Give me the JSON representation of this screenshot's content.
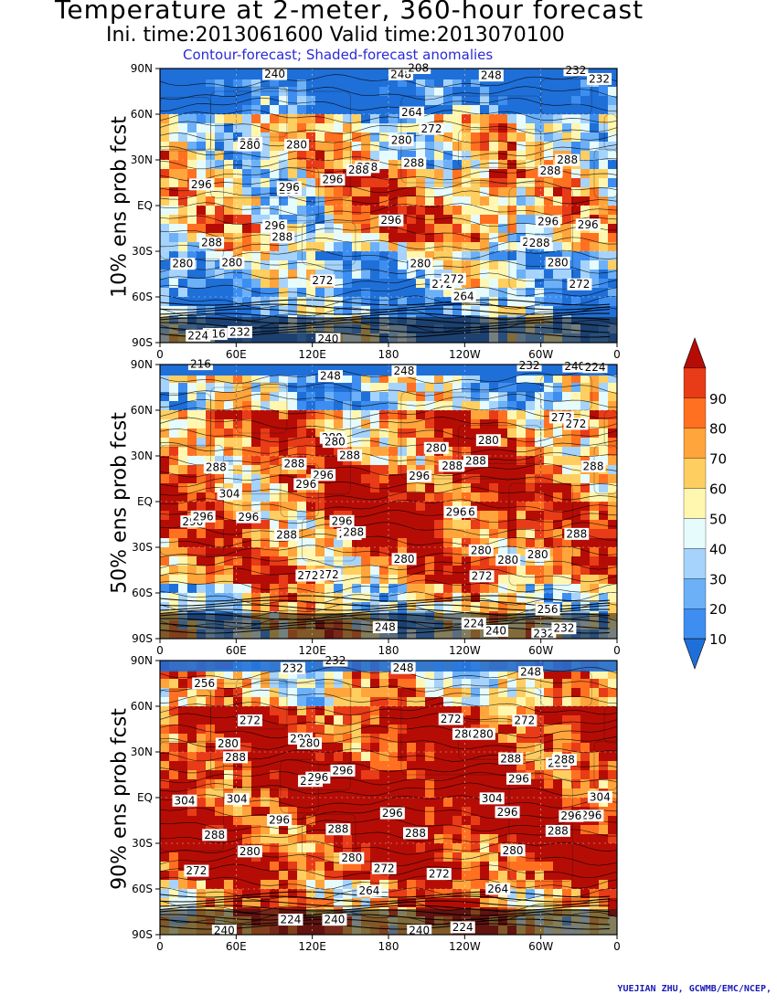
{
  "header": {
    "title": "Temperature at 2-meter, 360-hour forecast",
    "subtitle": "Ini. time:2013061600    Valid time:2013070100",
    "caption": "Contour-forecast; Shaded-forecast anomalies"
  },
  "panels": [
    {
      "label": "10% ens prob fcst",
      "contour_labels": [
        "272",
        "280",
        "272",
        "288",
        "272",
        "264",
        "280",
        "280",
        "280",
        "288",
        "296",
        "288",
        "288",
        "296",
        "296",
        "296",
        "288",
        "280",
        "288",
        "296",
        "296",
        "288",
        "296",
        "296",
        "280",
        "288",
        "288",
        "280",
        "280",
        "272",
        "272",
        "248",
        "264",
        "248",
        "240",
        "232",
        "216",
        "240",
        "232",
        "208",
        "224",
        "232"
      ]
    },
    {
      "label": "50% ens prob fcst",
      "contour_labels": [
        "272",
        "280",
        "272",
        "280",
        "280",
        "288",
        "272",
        "272",
        "288",
        "288",
        "288",
        "288",
        "296",
        "288",
        "296",
        "304",
        "280",
        "280",
        "296",
        "296",
        "296",
        "296",
        "288",
        "288",
        "296",
        "296",
        "296",
        "288",
        "288",
        "288",
        "280",
        "280",
        "280",
        "272",
        "256",
        "232",
        "248",
        "240",
        "224",
        "216",
        "232",
        "248",
        "240",
        "224",
        "232",
        "248"
      ]
    },
    {
      "label": "90% ens prob fcst",
      "contour_labels": [
        "272",
        "280",
        "288",
        "272",
        "272",
        "280",
        "288",
        "280",
        "288",
        "288",
        "296",
        "296",
        "280",
        "296",
        "280",
        "272",
        "304",
        "304",
        "296",
        "296",
        "304",
        "288",
        "296",
        "304",
        "296",
        "296",
        "296",
        "288",
        "288",
        "288",
        "280",
        "280",
        "272",
        "280",
        "264",
        "256",
        "240",
        "248",
        "224",
        "272",
        "264",
        "232",
        "240",
        "248",
        "240",
        "232",
        "224"
      ]
    }
  ],
  "map_axes": {
    "lat_ticks": [
      "90N",
      "60N",
      "30N",
      "EQ",
      "30S",
      "60S",
      "90S"
    ],
    "lon_ticks": [
      "0",
      "60E",
      "120E",
      "180",
      "120W",
      "60W",
      "0"
    ]
  },
  "colorbar": {
    "levels": [
      "10",
      "20",
      "30",
      "40",
      "50",
      "60",
      "70",
      "80",
      "90"
    ],
    "colors": [
      "#1f6fd8",
      "#3d8ef0",
      "#6cb0f7",
      "#a6d3fb",
      "#e6fbfb",
      "#fff7b0",
      "#ffce60",
      "#ffa53b",
      "#ff7020",
      "#e83b17",
      "#b50d05"
    ]
  },
  "credit": "YUEJIAN ZHU, GCWMB/EMC/NCEP,"
}
